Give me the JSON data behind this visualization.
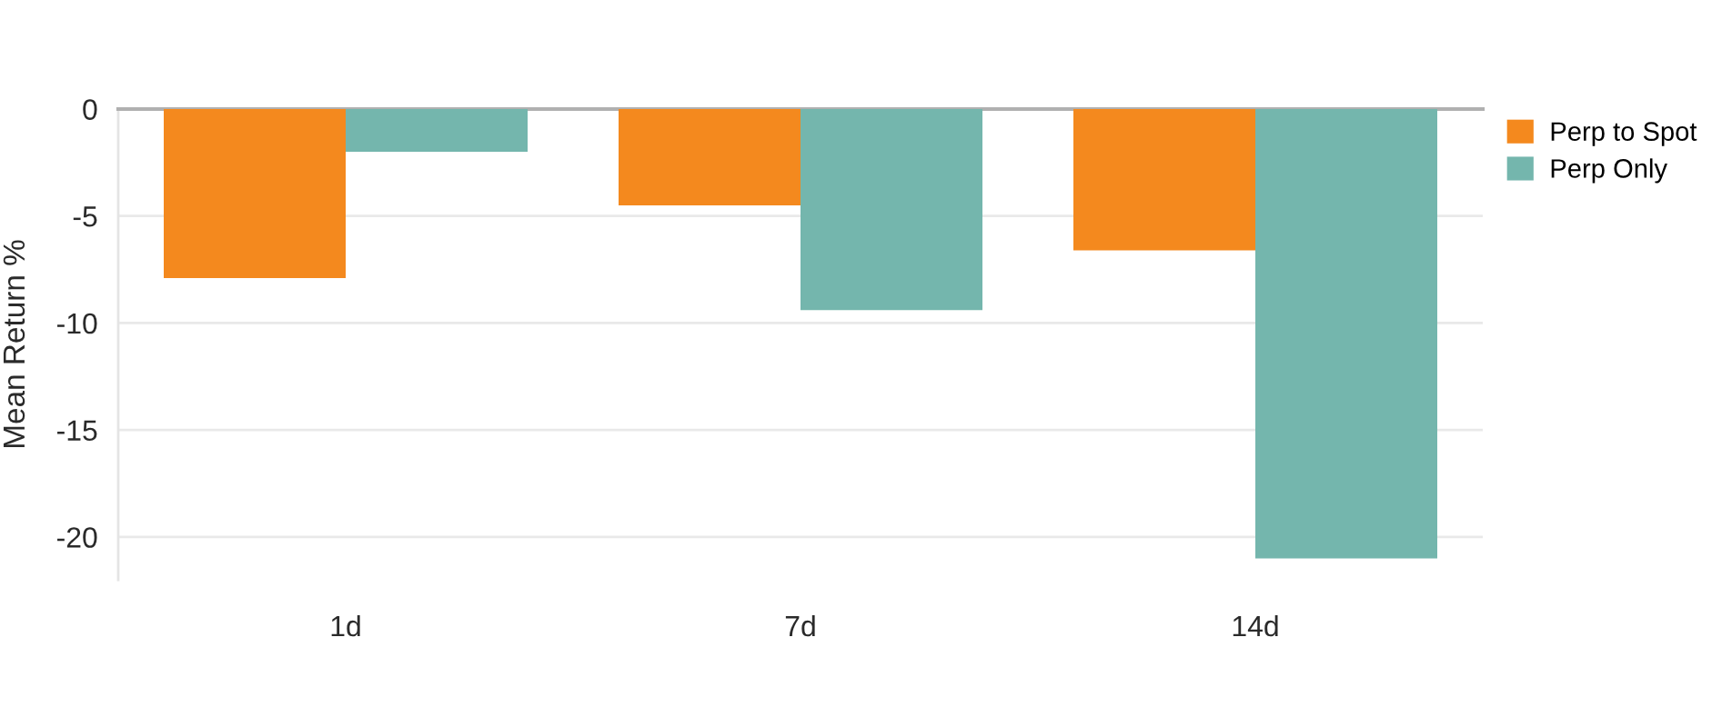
{
  "chart_data": {
    "type": "bar",
    "ylabel": "Mean Return %",
    "categories": [
      "1d",
      "7d",
      "14d"
    ],
    "series": [
      {
        "name": "Perp to Spot",
        "color": "#f4891e",
        "values": [
          -7.9,
          -4.5,
          -6.6
        ]
      },
      {
        "name": "Perp Only",
        "color": "#74b6ad",
        "values": [
          -2.0,
          -9.4,
          -21.0
        ]
      }
    ],
    "ylim": [
      -22,
      0
    ],
    "yticks": [
      0,
      -5,
      -10,
      -15,
      -20
    ],
    "grid": "y",
    "legend": "top right"
  }
}
